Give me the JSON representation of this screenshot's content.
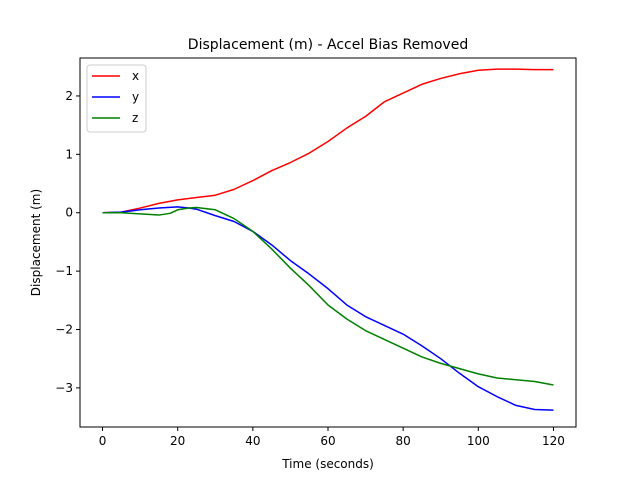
{
  "chart_data": {
    "type": "line",
    "title": "Displacement (m) - Accel Bias Removed",
    "xlabel": "Time (seconds)",
    "ylabel": "Displacement (m)",
    "xlim": [
      -6,
      126
    ],
    "ylim": [
      -3.67,
      2.65
    ],
    "xticks": [
      0,
      20,
      40,
      60,
      80,
      100,
      120
    ],
    "yticks": [
      -3,
      -2,
      -1,
      0,
      1,
      2
    ],
    "grid": false,
    "legend_position": "top-left",
    "series": [
      {
        "name": "x",
        "color": "#ff0000",
        "points": [
          [
            0,
            0
          ],
          [
            5,
            0.01
          ],
          [
            10,
            0.08
          ],
          [
            15,
            0.16
          ],
          [
            20,
            0.22
          ],
          [
            25,
            0.26
          ],
          [
            30,
            0.3
          ],
          [
            35,
            0.4
          ],
          [
            40,
            0.55
          ],
          [
            45,
            0.72
          ],
          [
            50,
            0.86
          ],
          [
            55,
            1.02
          ],
          [
            60,
            1.22
          ],
          [
            65,
            1.45
          ],
          [
            70,
            1.65
          ],
          [
            75,
            1.9
          ],
          [
            80,
            2.05
          ],
          [
            85,
            2.2
          ],
          [
            90,
            2.3
          ],
          [
            95,
            2.38
          ],
          [
            100,
            2.44
          ],
          [
            105,
            2.46
          ],
          [
            110,
            2.46
          ],
          [
            115,
            2.45
          ],
          [
            120,
            2.45
          ]
        ]
      },
      {
        "name": "y",
        "color": "#0000ff",
        "points": [
          [
            0,
            0
          ],
          [
            5,
            0.01
          ],
          [
            10,
            0.05
          ],
          [
            15,
            0.08
          ],
          [
            20,
            0.1
          ],
          [
            23,
            0.08
          ],
          [
            25,
            0.06
          ],
          [
            30,
            -0.05
          ],
          [
            35,
            -0.15
          ],
          [
            40,
            -0.32
          ],
          [
            45,
            -0.55
          ],
          [
            50,
            -0.82
          ],
          [
            55,
            -1.05
          ],
          [
            60,
            -1.3
          ],
          [
            65,
            -1.58
          ],
          [
            70,
            -1.78
          ],
          [
            75,
            -1.93
          ],
          [
            80,
            -2.08
          ],
          [
            85,
            -2.28
          ],
          [
            90,
            -2.5
          ],
          [
            95,
            -2.75
          ],
          [
            100,
            -2.98
          ],
          [
            105,
            -3.15
          ],
          [
            110,
            -3.3
          ],
          [
            115,
            -3.37
          ],
          [
            120,
            -3.38
          ]
        ]
      },
      {
        "name": "z",
        "color": "#008000",
        "points": [
          [
            0,
            0
          ],
          [
            5,
            0
          ],
          [
            10,
            -0.02
          ],
          [
            15,
            -0.04
          ],
          [
            18,
            -0.01
          ],
          [
            20,
            0.05
          ],
          [
            23,
            0.08
          ],
          [
            25,
            0.09
          ],
          [
            30,
            0.05
          ],
          [
            35,
            -0.1
          ],
          [
            40,
            -0.32
          ],
          [
            45,
            -0.62
          ],
          [
            50,
            -0.95
          ],
          [
            55,
            -1.25
          ],
          [
            60,
            -1.58
          ],
          [
            65,
            -1.82
          ],
          [
            70,
            -2.02
          ],
          [
            75,
            -2.17
          ],
          [
            80,
            -2.32
          ],
          [
            85,
            -2.47
          ],
          [
            90,
            -2.58
          ],
          [
            95,
            -2.67
          ],
          [
            100,
            -2.76
          ],
          [
            105,
            -2.83
          ],
          [
            110,
            -2.86
          ],
          [
            115,
            -2.89
          ],
          [
            120,
            -2.95
          ]
        ]
      }
    ]
  }
}
